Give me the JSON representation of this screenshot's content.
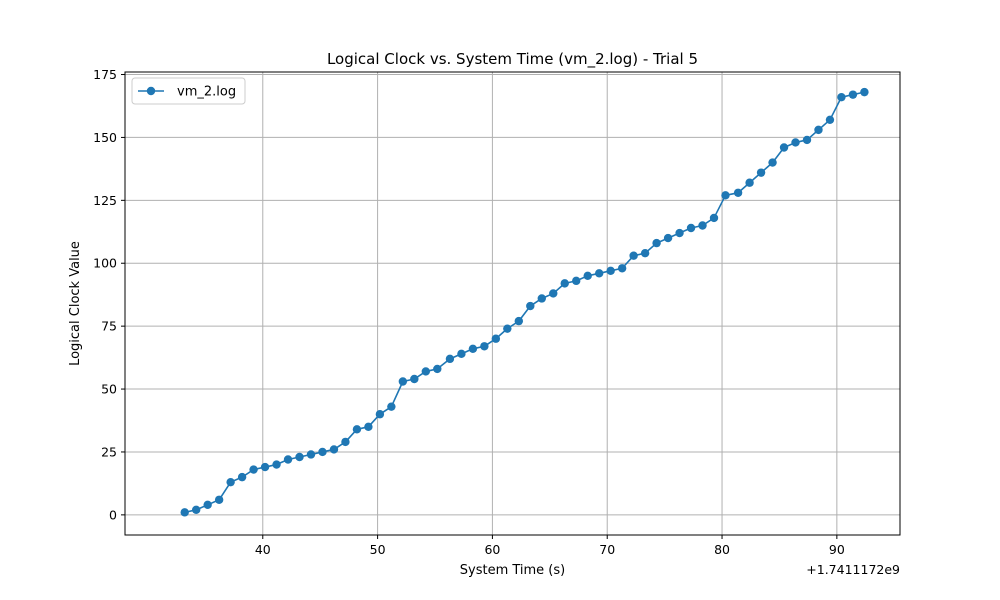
{
  "chart_data": {
    "type": "line",
    "title": "Logical Clock vs. System Time (vm_2.log) - Trial 5",
    "xlabel": "System Time (s)",
    "ylabel": "Logical Clock Value",
    "x_offset_label": "+1.7411172e9",
    "xlim": [
      28,
      95.5
    ],
    "ylim": [
      -8,
      176
    ],
    "xticks": [
      40,
      50,
      60,
      70,
      80,
      90
    ],
    "yticks": [
      0,
      25,
      50,
      75,
      100,
      125,
      150,
      175
    ],
    "grid": true,
    "legend_position": "top-left",
    "colors": {
      "series": "#1f77b4"
    },
    "series": [
      {
        "name": "vm_2.log",
        "marker": "circle",
        "x": [
          33.2,
          34.2,
          35.2,
          36.2,
          37.2,
          38.2,
          39.2,
          40.2,
          41.2,
          42.2,
          43.2,
          44.2,
          45.2,
          46.2,
          47.2,
          48.2,
          49.2,
          50.2,
          51.2,
          52.2,
          53.2,
          54.2,
          55.2,
          56.3,
          57.3,
          58.3,
          59.3,
          60.3,
          61.3,
          62.3,
          63.3,
          64.3,
          65.3,
          66.3,
          67.3,
          68.3,
          69.3,
          70.3,
          71.3,
          72.3,
          73.3,
          74.3,
          75.3,
          76.3,
          77.3,
          78.3,
          79.3,
          80.3,
          81.4,
          82.4,
          83.4,
          84.4,
          85.4,
          86.4,
          87.4,
          88.4,
          89.4,
          90.4,
          91.4,
          92.4
        ],
        "y": [
          1,
          2,
          4,
          6,
          13,
          15,
          18,
          19,
          20,
          22,
          23,
          24,
          25,
          26,
          29,
          34,
          35,
          40,
          43,
          53,
          54,
          57,
          58,
          62,
          64,
          66,
          67,
          70,
          74,
          77,
          83,
          86,
          88,
          92,
          93,
          95,
          96,
          97,
          98,
          103,
          104,
          108,
          110,
          112,
          114,
          115,
          118,
          127,
          128,
          132,
          136,
          140,
          146,
          148,
          149,
          153,
          157,
          166,
          167,
          168
        ]
      }
    ]
  }
}
